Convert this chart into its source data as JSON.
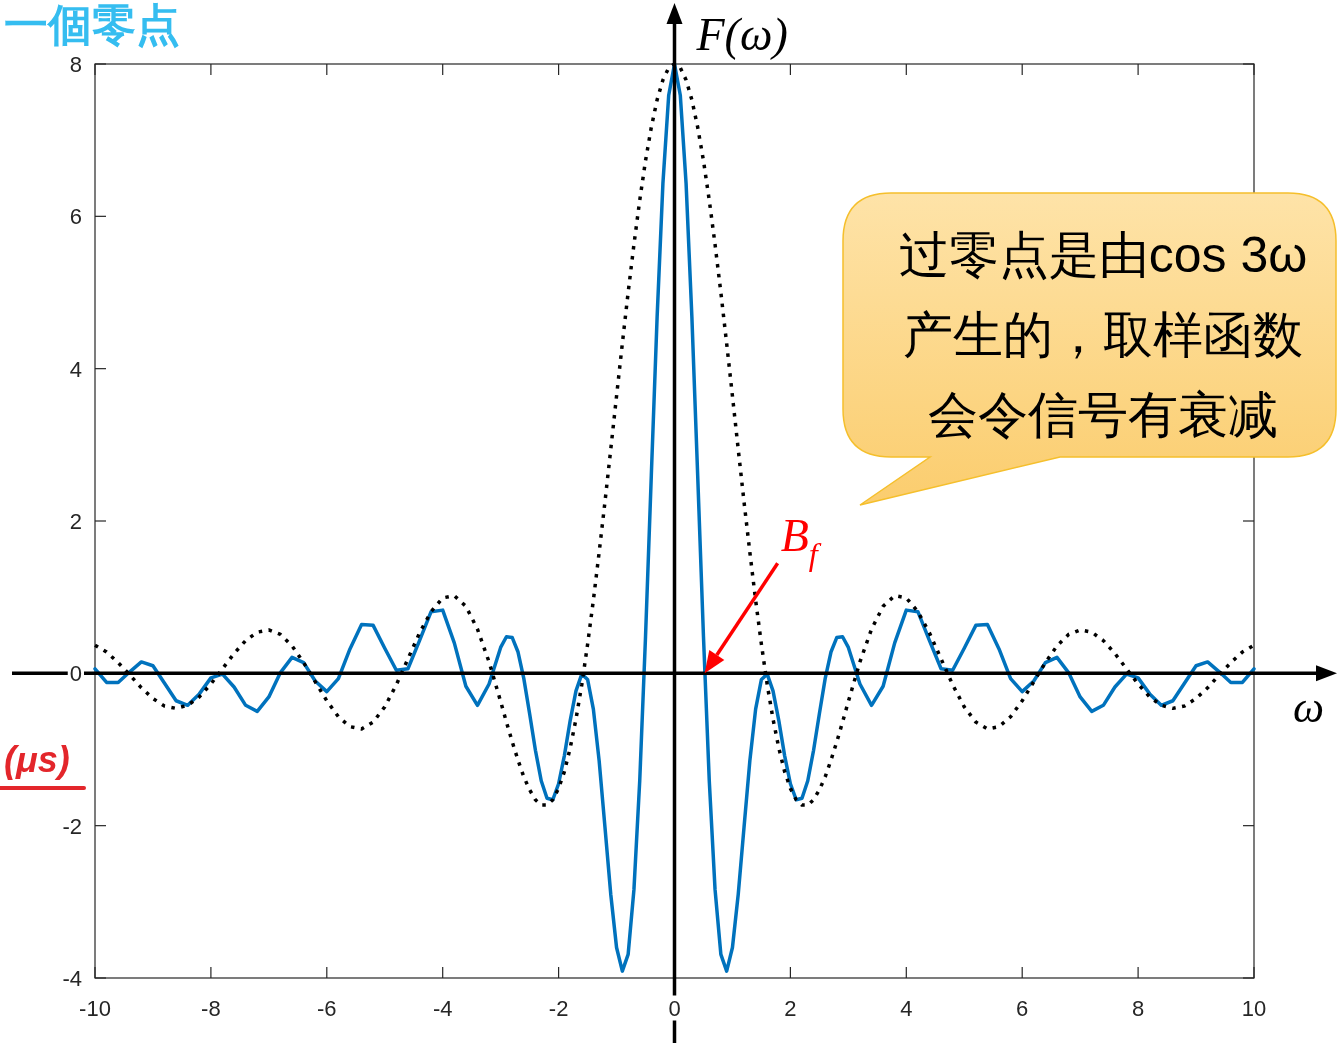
{
  "chart_data": {
    "type": "line",
    "xlabel": "ω",
    "ylabel": "F(ω)",
    "xlim": [
      -10,
      10
    ],
    "ylim": [
      -4,
      8
    ],
    "xticks": [
      -10,
      -8,
      -6,
      -4,
      -2,
      0,
      2,
      4,
      6,
      8,
      10
    ],
    "yticks": [
      -4,
      -2,
      0,
      2,
      4,
      6,
      8
    ],
    "line_style": "solid",
    "x": [
      -10,
      -9.8,
      -9.6,
      -9.4,
      -9.2,
      -9,
      -8.8,
      -8.6,
      -8.4,
      -8.2,
      -8,
      -7.8,
      -7.6,
      -7.4,
      -7.2,
      -7,
      -6.8,
      -6.6,
      -6.4,
      -6.2,
      -6,
      -5.8,
      -5.6,
      -5.4,
      -5.2,
      -5,
      -4.8,
      -4.6,
      -4.4,
      -4.2,
      -4,
      -3.8,
      -3.6,
      -3.4,
      -3.2,
      -3,
      -2.9,
      -2.8,
      -2.7,
      -2.6,
      -2.5,
      -2.4,
      -2.3,
      -2.2,
      -2.1,
      -2,
      -1.9,
      -1.8,
      -1.7,
      -1.6,
      -1.5,
      -1.4,
      -1.3,
      -1.2,
      -1.1,
      -1,
      -0.9,
      -0.8,
      -0.7,
      -0.6,
      -0.5,
      -0.4,
      -0.3,
      -0.2,
      -0.1,
      0,
      0.1,
      0.2,
      0.3,
      0.4,
      0.5,
      0.6,
      0.7,
      0.8,
      0.9,
      1,
      1.1,
      1.2,
      1.3,
      1.4,
      1.5,
      1.6,
      1.7,
      1.8,
      1.9,
      2,
      2.1,
      2.2,
      2.3,
      2.4,
      2.5,
      2.6,
      2.7,
      2.8,
      2.9,
      3,
      3.2,
      3.4,
      3.6,
      3.8,
      4,
      4.2,
      4.4,
      4.6,
      4.8,
      5,
      5.2,
      5.4,
      5.6,
      5.8,
      6,
      6.2,
      6.4,
      6.6,
      6.8,
      7,
      7.2,
      7.4,
      7.6,
      7.8,
      8,
      8.2,
      8.4,
      8.6,
      8.8,
      9,
      9.2,
      9.4,
      9.6,
      9.8,
      10
    ],
    "series": [
      {
        "color": "#0072bd",
        "values": [
          0.06,
          -0.12,
          -0.12,
          0.02,
          0.15,
          0.1,
          -0.13,
          -0.36,
          -0.42,
          -0.27,
          -0.06,
          -0.01,
          -0.18,
          -0.42,
          -0.5,
          -0.31,
          0.01,
          0.21,
          0.14,
          -0.1,
          -0.24,
          -0.07,
          0.32,
          0.64,
          0.63,
          0.33,
          0.04,
          0.06,
          0.43,
          0.81,
          0.83,
          0.4,
          -0.17,
          -0.42,
          -0.14,
          0.34,
          0.48,
          0.47,
          0.28,
          -0.07,
          -0.53,
          -1.01,
          -1.41,
          -1.64,
          -1.66,
          -1.45,
          -1.08,
          -0.62,
          -0.23,
          -0.01,
          -0.08,
          -0.47,
          -1.15,
          -2.02,
          -2.9,
          -3.6,
          -3.91,
          -3.69,
          -2.84,
          -1.41,
          0.48,
          2.6,
          4.68,
          6.43,
          7.59,
          8,
          7.59,
          6.43,
          4.68,
          2.6,
          0.48,
          -1.41,
          -2.84,
          -3.69,
          -3.91,
          -3.6,
          -2.9,
          -2.02,
          -1.15,
          -0.47,
          -0.08,
          -0.01,
          -0.23,
          -0.62,
          -1.08,
          -1.45,
          -1.66,
          -1.64,
          -1.41,
          -1.01,
          -0.53,
          -0.07,
          0.28,
          0.47,
          0.48,
          0.34,
          -0.14,
          -0.42,
          -0.17,
          0.4,
          0.83,
          0.81,
          0.43,
          0.06,
          0.04,
          0.33,
          0.63,
          0.64,
          0.32,
          -0.07,
          -0.24,
          -0.1,
          0.14,
          0.21,
          0.01,
          -0.31,
          -0.5,
          -0.42,
          -0.18,
          -0.01,
          -0.06,
          -0.27,
          -0.42,
          -0.36,
          -0.13,
          0.1,
          0.15,
          0.02,
          -0.12,
          -0.12,
          0.06
        ]
      },
      {
        "color": "#000000",
        "line_style": "dotted",
        "values": [
          0.37,
          0.28,
          0.14,
          -0.02,
          -0.19,
          -0.33,
          -0.43,
          -0.46,
          -0.42,
          -0.31,
          -0.14,
          0.06,
          0.26,
          0.43,
          0.54,
          0.57,
          0.51,
          0.36,
          0.14,
          -0.11,
          -0.36,
          -0.57,
          -0.7,
          -0.73,
          -0.64,
          -0.44,
          -0.15,
          0.19,
          0.53,
          0.81,
          0.99,
          1.02,
          0.88,
          0.58,
          0.15,
          -0.37,
          -0.64,
          -0.9,
          -1.14,
          -1.36,
          -1.53,
          -1.66,
          -1.73,
          -1.73,
          -1.66,
          -1.51,
          -1.29,
          -0.98,
          -0.6,
          -0.15,
          0.38,
          0.96,
          1.59,
          2.25,
          2.94,
          3.64,
          4.33,
          5,
          5.63,
          6.21,
          6.73,
          7.17,
          7.53,
          7.79,
          7.95,
          8,
          7.95,
          7.79,
          7.53,
          7.17,
          6.73,
          6.21,
          5.63,
          5,
          4.33,
          3.64,
          2.94,
          2.25,
          1.59,
          0.96,
          0.38,
          -0.15,
          -0.6,
          -0.98,
          -1.29,
          -1.51,
          -1.66,
          -1.73,
          -1.73,
          -1.66,
          -1.53,
          -1.36,
          -1.14,
          -0.9,
          -0.64,
          -0.37,
          0.15,
          0.58,
          0.88,
          1.02,
          0.99,
          0.81,
          0.53,
          0.19,
          -0.15,
          -0.44,
          -0.64,
          -0.73,
          -0.7,
          -0.57,
          -0.36,
          -0.11,
          0.14,
          0.36,
          0.51,
          0.57,
          0.54,
          0.43,
          0.26,
          0.06,
          -0.14,
          -0.31,
          -0.42,
          -0.46,
          -0.43,
          -0.33,
          -0.19,
          -0.02,
          0.14,
          0.28,
          0.37
        ]
      }
    ],
    "annotations": [
      {
        "text": "B$_{f}$",
        "x": 0.52,
        "y": 0
      },
      "过零点是由cos 3ω产生的，取样函数会令信号有衰减",
      "一個零点",
      "(μs)"
    ]
  }
}
